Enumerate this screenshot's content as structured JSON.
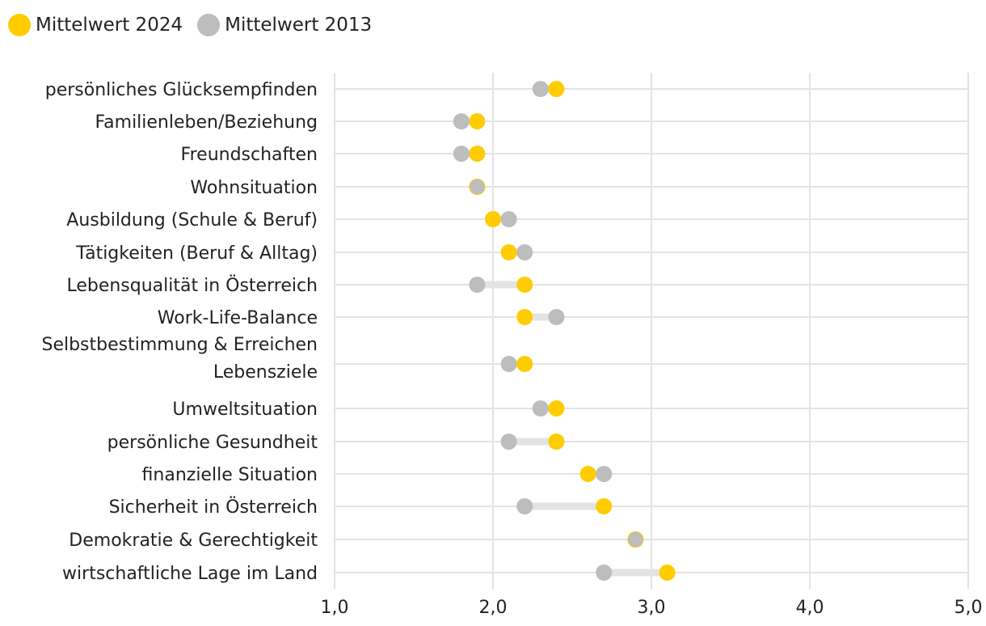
{
  "legend": {
    "item_2024": "Mittelwert 2024",
    "item_2013": "Mittelwert 2013"
  },
  "colors": {
    "series_2024": "#FFCC00",
    "series_2013": "#BDBDBD",
    "connector": "#E3E3E3",
    "grid": "#E3E3E3"
  },
  "chart_data": {
    "type": "scatter",
    "subtype": "dumbbell",
    "title": "",
    "xlabel": "",
    "ylabel": "",
    "xlim": [
      1.0,
      5.0
    ],
    "xticks": [
      "1,0",
      "2,0",
      "3,0",
      "4,0",
      "5,0"
    ],
    "grid": true,
    "legend_position": "top-left",
    "categories": [
      [
        "persönliches Glücksempfinden"
      ],
      [
        "Familienleben/Beziehung"
      ],
      [
        "Freundschaften"
      ],
      [
        "Wohnsituation"
      ],
      [
        "Ausbildung (Schule & Beruf)"
      ],
      [
        "Tätigkeiten (Beruf & Alltag)"
      ],
      [
        "Lebensqualität in Österreich"
      ],
      [
        "Work-Life-Balance"
      ],
      [
        "Selbstbestimmung & Erreichen",
        "Lebensziele"
      ],
      [
        "Umweltsituation"
      ],
      [
        "persönliche Gesundheit"
      ],
      [
        "finanzielle Situation"
      ],
      [
        "Sicherheit in Österreich"
      ],
      [
        "Demokratie & Gerechtigkeit"
      ],
      [
        "wirtschaftliche Lage im Land"
      ]
    ],
    "series": [
      {
        "name": "Mittelwert 2024",
        "values": [
          2.4,
          1.9,
          1.9,
          1.9,
          2.0,
          2.1,
          2.2,
          2.2,
          2.2,
          2.4,
          2.4,
          2.6,
          2.7,
          2.9,
          3.1
        ]
      },
      {
        "name": "Mittelwert 2013",
        "values": [
          2.3,
          1.8,
          1.8,
          1.9,
          2.1,
          2.2,
          1.9,
          2.4,
          2.1,
          2.3,
          2.1,
          2.7,
          2.2,
          2.9,
          2.7
        ]
      }
    ]
  }
}
